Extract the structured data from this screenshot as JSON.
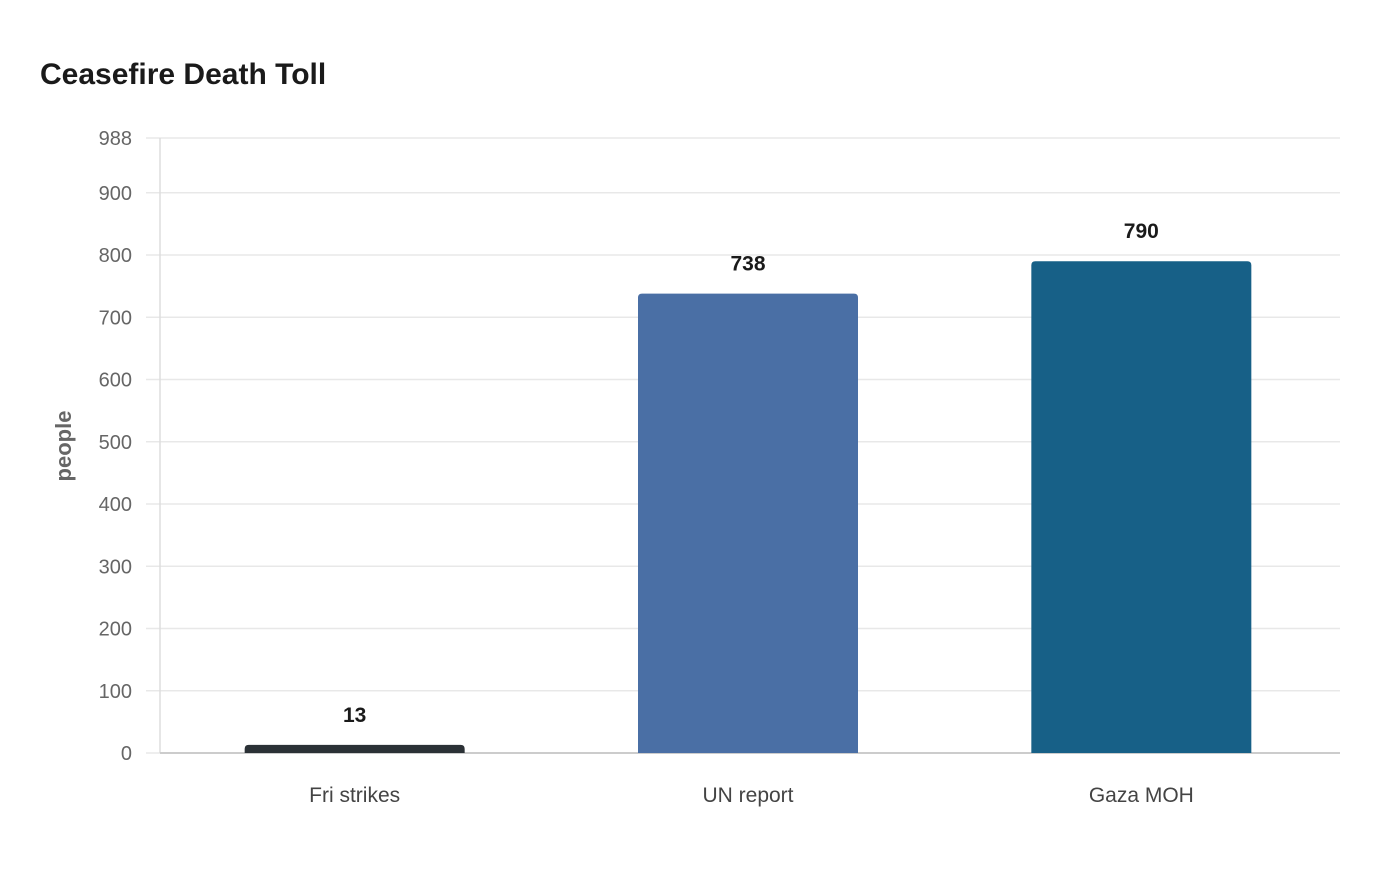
{
  "chart_data": {
    "type": "bar",
    "title": "Ceasefire Death Toll",
    "xlabel": "",
    "ylabel": "people",
    "categories": [
      "Fri strikes",
      "UN report",
      "Gaza MOH"
    ],
    "values": [
      13,
      738,
      790
    ],
    "bar_colors": [
      "#2b3136",
      "#4a6fa5",
      "#176087"
    ],
    "ylim": [
      0,
      988
    ],
    "yticks": [
      0,
      100,
      200,
      300,
      400,
      500,
      600,
      700,
      800,
      900,
      988
    ],
    "grid": true,
    "legend": "none"
  }
}
